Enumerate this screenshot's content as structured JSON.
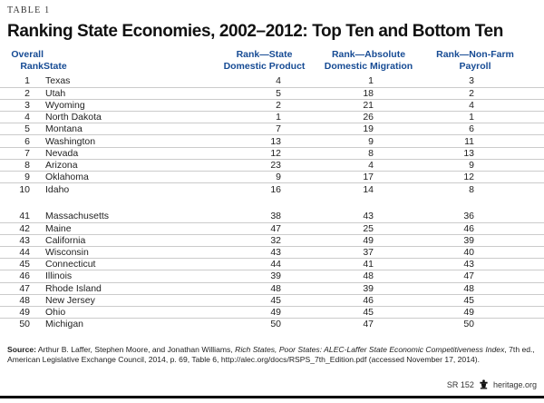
{
  "page": {
    "table_label": "TABLE 1",
    "title": "Ranking State Economies, 2002–2012: Top Ten and Bottom Ten"
  },
  "chart_data": {
    "type": "table",
    "title": "Ranking State Economies, 2002–2012: Top Ten and Bottom Ten",
    "columns": [
      "Overall Rank",
      "State",
      "Rank—State Domestic Product",
      "Rank—Absolute Domestic Migration",
      "Rank—Non-Farm Payroll"
    ],
    "headers": {
      "overall_1": "Overall",
      "overall_2": "Rank",
      "state": "State",
      "gdp_1": "Rank—State",
      "gdp_2": "Domestic Product",
      "mig_1": "Rank—Absolute",
      "mig_2": "Domestic Migration",
      "pay_1": "Rank—Non-Farm",
      "pay_2": "Payroll"
    },
    "rows_top": [
      [
        "1",
        "Texas",
        "4",
        "1",
        "3"
      ],
      [
        "2",
        "Utah",
        "5",
        "18",
        "2"
      ],
      [
        "3",
        "Wyoming",
        "2",
        "21",
        "4"
      ],
      [
        "4",
        "North Dakota",
        "1",
        "26",
        "1"
      ],
      [
        "5",
        "Montana",
        "7",
        "19",
        "6"
      ],
      [
        "6",
        "Washington",
        "13",
        "9",
        "11"
      ],
      [
        "7",
        "Nevada",
        "12",
        "8",
        "13"
      ],
      [
        "8",
        "Arizona",
        "23",
        "4",
        "9"
      ],
      [
        "9",
        "Oklahoma",
        "9",
        "17",
        "12"
      ],
      [
        "10",
        "Idaho",
        "16",
        "14",
        "8"
      ]
    ],
    "rows_bottom": [
      [
        "41",
        "Massachusetts",
        "38",
        "43",
        "36"
      ],
      [
        "42",
        "Maine",
        "47",
        "25",
        "46"
      ],
      [
        "43",
        "California",
        "32",
        "49",
        "39"
      ],
      [
        "44",
        "Wisconsin",
        "43",
        "37",
        "40"
      ],
      [
        "45",
        "Connecticut",
        "44",
        "41",
        "43"
      ],
      [
        "46",
        "Illinois",
        "39",
        "48",
        "47"
      ],
      [
        "47",
        "Rhode Island",
        "48",
        "39",
        "48"
      ],
      [
        "48",
        "New Jersey",
        "45",
        "46",
        "45"
      ],
      [
        "49",
        "Ohio",
        "49",
        "45",
        "49"
      ],
      [
        "50",
        "Michigan",
        "50",
        "47",
        "50"
      ]
    ]
  },
  "source": {
    "label": "Source:",
    "text_before_italic": " Arthur B. Laffer, Stephen Moore, and Jonathan Williams, ",
    "italic": "Rich States, Poor States: ALEC-Laffer State Economic Competitiveness Index",
    "text_after_italic": ", 7th ed., American Legislative Exchange Council, 2014, p. 69, Table 6, http://alec.org/docs/RSPS_7th_Edition.pdf (accessed November 17, 2014)."
  },
  "footer": {
    "report_id": "SR 152",
    "site": "heritage.org",
    "logo": "heritage-tower-icon"
  },
  "colors": {
    "header_blue": "#164B94",
    "divider_gray": "#cbcbcb",
    "bottom_bar": "#000000"
  }
}
